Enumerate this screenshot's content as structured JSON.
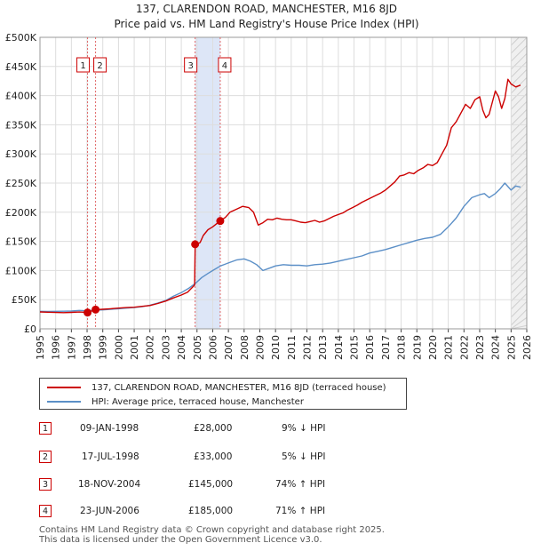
{
  "header": {
    "title": "137, CLARENDON ROAD, MANCHESTER, M16 8JD",
    "subtitle": "Price paid vs. HM Land Registry's House Price Index (HPI)"
  },
  "chart_data": {
    "type": "line",
    "title": "137, CLARENDON ROAD, MANCHESTER, M16 8JD",
    "subtitle": "Price paid vs. HM Land Registry's House Price Index (HPI)",
    "xlim": [
      1995,
      2026
    ],
    "ylim": [
      0,
      500000
    ],
    "x_ticks": [
      "1995",
      "1996",
      "1997",
      "1998",
      "1999",
      "2000",
      "2001",
      "2002",
      "2003",
      "2004",
      "2005",
      "2006",
      "2007",
      "2008",
      "2009",
      "2010",
      "2011",
      "2012",
      "2013",
      "2014",
      "2015",
      "2016",
      "2017",
      "2018",
      "2019",
      "2020",
      "2021",
      "2022",
      "2023",
      "2024",
      "2025",
      "2026"
    ],
    "y_ticks": [
      {
        "value": 0,
        "label": "£0"
      },
      {
        "value": 50000,
        "label": "£50K"
      },
      {
        "value": 100000,
        "label": "£100K"
      },
      {
        "value": 150000,
        "label": "£150K"
      },
      {
        "value": 200000,
        "label": "£200K"
      },
      {
        "value": 250000,
        "label": "£250K"
      },
      {
        "value": 300000,
        "label": "£300K"
      },
      {
        "value": 350000,
        "label": "£350K"
      },
      {
        "value": 400000,
        "label": "£400K"
      },
      {
        "value": 450000,
        "label": "£450K"
      },
      {
        "value": 500000,
        "label": "£500K"
      }
    ],
    "grid": true,
    "series": [
      {
        "name": "137, CLARENDON ROAD, MANCHESTER, M16 8JD (terraced house)",
        "color": "#cc0000",
        "x": [
          1995.0,
          1995.5,
          1996.0,
          1996.5,
          1997.0,
          1997.5,
          1998.03,
          1998.3,
          1998.54,
          1999.0,
          1999.5,
          2000.0,
          2000.5,
          2001.0,
          2001.5,
          2002.0,
          2002.5,
          2003.0,
          2003.5,
          2004.0,
          2004.4,
          2004.85,
          2004.88,
          2005.0,
          2005.2,
          2005.4,
          2005.7,
          2006.0,
          2006.48,
          2006.8,
          2007.1,
          2007.5,
          2007.9,
          2008.3,
          2008.6,
          2008.9,
          2009.2,
          2009.5,
          2009.8,
          2010.1,
          2010.4,
          2010.7,
          2011.0,
          2011.3,
          2011.6,
          2011.9,
          2012.2,
          2012.5,
          2012.8,
          2013.1,
          2013.4,
          2013.7,
          2014.0,
          2014.3,
          2014.6,
          2014.9,
          2015.2,
          2015.5,
          2015.8,
          2016.1,
          2016.4,
          2016.7,
          2017.0,
          2017.3,
          2017.6,
          2017.9,
          2018.2,
          2018.5,
          2018.8,
          2019.1,
          2019.4,
          2019.7,
          2020.0,
          2020.3,
          2020.6,
          2020.9,
          2021.2,
          2021.5,
          2021.8,
          2022.1,
          2022.4,
          2022.7,
          2023.0,
          2023.2,
          2023.4,
          2023.6,
          2023.8,
          2024.0,
          2024.2,
          2024.4,
          2024.6,
          2024.8,
          2025.0,
          2025.3,
          2025.6
        ],
        "y": [
          29000,
          28500,
          28000,
          27800,
          28200,
          28800,
          28000,
          30500,
          33000,
          33500,
          34500,
          35500,
          36500,
          37000,
          38500,
          40000,
          43500,
          47500,
          53000,
          58000,
          63000,
          75000,
          145000,
          145000,
          148000,
          160000,
          170000,
          175000,
          185000,
          191000,
          200000,
          205000,
          210000,
          208000,
          200000,
          178000,
          182000,
          188000,
          187000,
          190000,
          188000,
          187000,
          187000,
          185000,
          183000,
          182000,
          184000,
          186000,
          183000,
          185000,
          189000,
          193000,
          196000,
          199000,
          204000,
          208000,
          212000,
          217000,
          221000,
          225000,
          229000,
          233000,
          238000,
          245000,
          252000,
          262000,
          264000,
          268000,
          266000,
          272000,
          276000,
          282000,
          280000,
          285000,
          300000,
          315000,
          345000,
          355000,
          370000,
          385000,
          378000,
          393000,
          398000,
          375000,
          362000,
          368000,
          388000,
          408000,
          398000,
          378000,
          395000,
          428000,
          420000,
          415000,
          418000
        ]
      },
      {
        "name": "HPI: Average price, terraced house, Manchester",
        "color": "#5b8fc7",
        "x": [
          1995.0,
          1995.5,
          1996.0,
          1996.5,
          1997.0,
          1997.5,
          1998.0,
          1998.5,
          1999.0,
          1999.5,
          2000.0,
          2000.5,
          2001.0,
          2001.5,
          2002.0,
          2002.5,
          2003.0,
          2003.5,
          2004.0,
          2004.5,
          2004.9,
          2005.3,
          2005.7,
          2006.0,
          2006.5,
          2007.0,
          2007.5,
          2008.0,
          2008.4,
          2008.8,
          2009.2,
          2009.6,
          2010.0,
          2010.5,
          2011.0,
          2011.5,
          2012.0,
          2012.5,
          2013.0,
          2013.5,
          2014.0,
          2014.5,
          2015.0,
          2015.5,
          2016.0,
          2016.5,
          2017.0,
          2017.5,
          2018.0,
          2018.5,
          2019.0,
          2019.5,
          2020.0,
          2020.5,
          2021.0,
          2021.5,
          2022.0,
          2022.5,
          2023.0,
          2023.3,
          2023.6,
          2024.0,
          2024.3,
          2024.6,
          2025.0,
          2025.3,
          2025.6
        ],
        "y": [
          30000,
          29800,
          30000,
          30200,
          30500,
          31500,
          31000,
          32000,
          32500,
          33500,
          34500,
          35500,
          36500,
          38000,
          40500,
          44000,
          48500,
          56000,
          62000,
          70000,
          78000,
          88000,
          95000,
          100000,
          108000,
          113000,
          118000,
          120000,
          116000,
          110000,
          100000,
          104000,
          108000,
          110000,
          109000,
          109000,
          108000,
          110000,
          111000,
          113000,
          116000,
          119000,
          122000,
          125000,
          130000,
          133000,
          136000,
          140000,
          144000,
          148000,
          152000,
          155000,
          157000,
          162000,
          175000,
          190000,
          210000,
          225000,
          230000,
          232000,
          225000,
          232000,
          240000,
          250000,
          238000,
          245000,
          243000
        ]
      }
    ],
    "transactions": [
      {
        "num": "1",
        "date": "09-JAN-1998",
        "price": "£28,000",
        "hpi": "9% ↓ HPI",
        "x": 1998.03,
        "y": 28000
      },
      {
        "num": "2",
        "date": "17-JUL-1998",
        "price": "£33,000",
        "hpi": "5% ↓ HPI",
        "x": 1998.54,
        "y": 33000
      },
      {
        "num": "3",
        "date": "18-NOV-2004",
        "price": "£145,000",
        "hpi": "74% ↑ HPI",
        "x": 2004.88,
        "y": 145000
      },
      {
        "num": "4",
        "date": "23-JUN-2006",
        "price": "£185,000",
        "hpi": "71% ↑ HPI",
        "x": 2006.48,
        "y": 185000
      }
    ],
    "future_from": 2025.0
  },
  "legend": {
    "red_label": "137, CLARENDON ROAD, MANCHESTER, M16 8JD (terraced house)",
    "blue_label": "HPI: Average price, terraced house, Manchester"
  },
  "footer": {
    "line1": "Contains HM Land Registry data © Crown copyright and database right 2025.",
    "line2": "This data is licensed under the Open Government Licence v3.0."
  },
  "colors": {
    "red": "#cc0000",
    "blue": "#5b8fc7",
    "shade": "#dde6f7",
    "grid": "#dddddd"
  }
}
